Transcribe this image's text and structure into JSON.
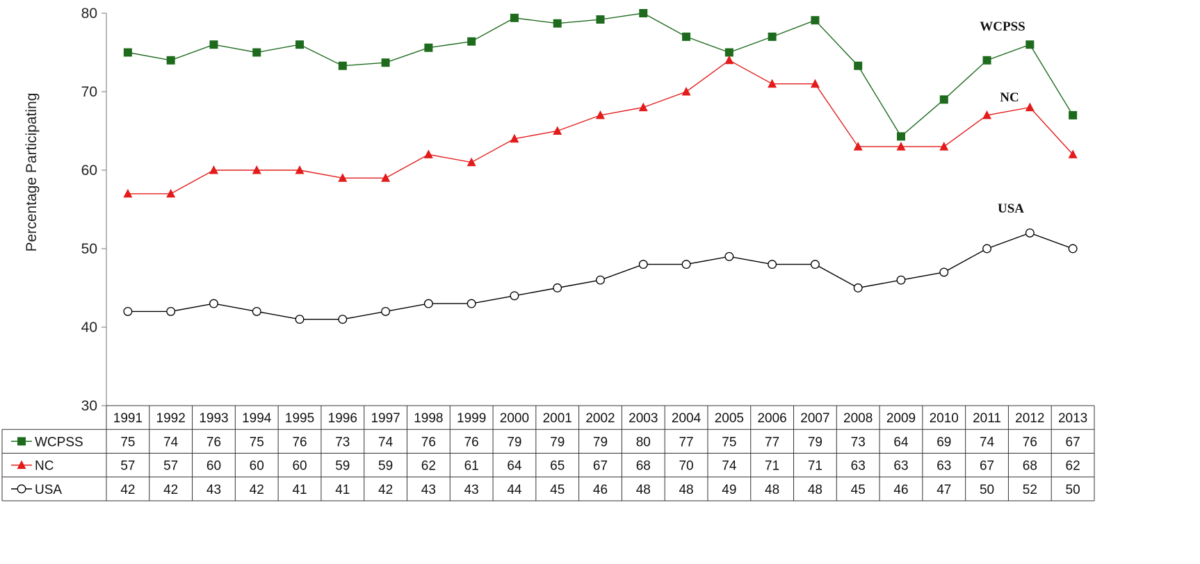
{
  "chart_data": {
    "type": "line",
    "ylabel": "Percentage Participating",
    "xlabel": "",
    "ylim": [
      30,
      80
    ],
    "yticks": [
      30,
      40,
      50,
      60,
      70,
      80
    ],
    "grid": false,
    "legend": "data-table",
    "x": [
      "1991",
      "1992",
      "1993",
      "1994",
      "1995",
      "1996",
      "1997",
      "1998",
      "1999",
      "2000",
      "2001",
      "2002",
      "2003",
      "2004",
      "2005",
      "2006",
      "2007",
      "2008",
      "2009",
      "2010",
      "2011",
      "2012",
      "2013"
    ],
    "series": [
      {
        "name": "WCPSS",
        "label": "WCPSS",
        "color": "#1e6b1e",
        "marker": "square",
        "plotted": [
          75,
          74,
          76,
          75,
          76,
          73.3,
          73.7,
          75.6,
          76.4,
          79.4,
          78.7,
          79.2,
          80,
          77,
          75,
          77,
          79.1,
          73.3,
          64.3,
          69,
          74,
          76,
          67
        ],
        "values": [
          75,
          74,
          76,
          75,
          76,
          73,
          74,
          76,
          76,
          79,
          79,
          79,
          80,
          77,
          75,
          77,
          79,
          73,
          64,
          69,
          74,
          76,
          67
        ]
      },
      {
        "name": "NC",
        "label": "NC",
        "color": "#e31b1b",
        "marker": "triangle",
        "plotted": [
          57,
          57,
          60,
          60,
          60,
          59,
          59,
          62,
          61,
          64,
          65,
          67,
          68,
          70,
          74,
          71,
          71,
          63,
          63,
          63,
          67,
          68,
          62
        ],
        "values": [
          57,
          57,
          60,
          60,
          60,
          59,
          59,
          62,
          61,
          64,
          65,
          67,
          68,
          70,
          74,
          71,
          71,
          63,
          63,
          63,
          67,
          68,
          62
        ]
      },
      {
        "name": "USA",
        "label": "USA",
        "color": "#000000",
        "marker": "circle-open",
        "plotted": [
          42,
          42,
          43,
          42,
          41,
          41,
          42,
          43,
          43,
          44,
          45,
          46,
          48,
          48,
          49,
          48,
          48,
          45,
          46,
          47,
          50,
          52,
          50
        ],
        "values": [
          42,
          42,
          43,
          42,
          41,
          41,
          42,
          43,
          43,
          44,
          45,
          46,
          48,
          48,
          49,
          48,
          48,
          45,
          46,
          47,
          50,
          52,
          50
        ]
      }
    ]
  }
}
